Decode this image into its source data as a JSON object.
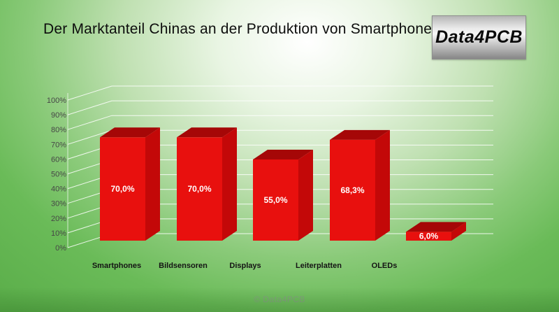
{
  "slide": {
    "logo_text": "Data4PCB",
    "footer": "© Data4PCB"
  },
  "chart_data": {
    "type": "bar",
    "variant": "3d-column",
    "title": "Der Marktanteil Chinas an der Produktion von Smartphones",
    "categories": [
      "Smartphones",
      "Bildsensoren",
      "Displays",
      "Leiterplatten",
      "OLEDs"
    ],
    "values": [
      70.0,
      70.0,
      55.0,
      68.3,
      6.0
    ],
    "value_labels": [
      "70,0%",
      "70,0%",
      "55,0%",
      "68,3%",
      "6,0%"
    ],
    "y_tick_labels": [
      "0%",
      "10%",
      "20%",
      "30%",
      "40%",
      "50%",
      "60%",
      "70%",
      "80%",
      "90%",
      "100%"
    ],
    "ylim": [
      0,
      100
    ],
    "grid": true,
    "legend": "none",
    "xlabel": "",
    "ylabel": ""
  },
  "colors": {
    "bar_front": "#e8100e",
    "bar_top": "#a50707",
    "bar_side": "#c30808",
    "gridline": "rgba(255,255,255,0.85)",
    "axis_line": "rgba(255,255,255,0.7)",
    "axis_label": "#464646",
    "category_label": "#141414",
    "value_label": "#ffffff",
    "footer_text": "#87a083"
  }
}
